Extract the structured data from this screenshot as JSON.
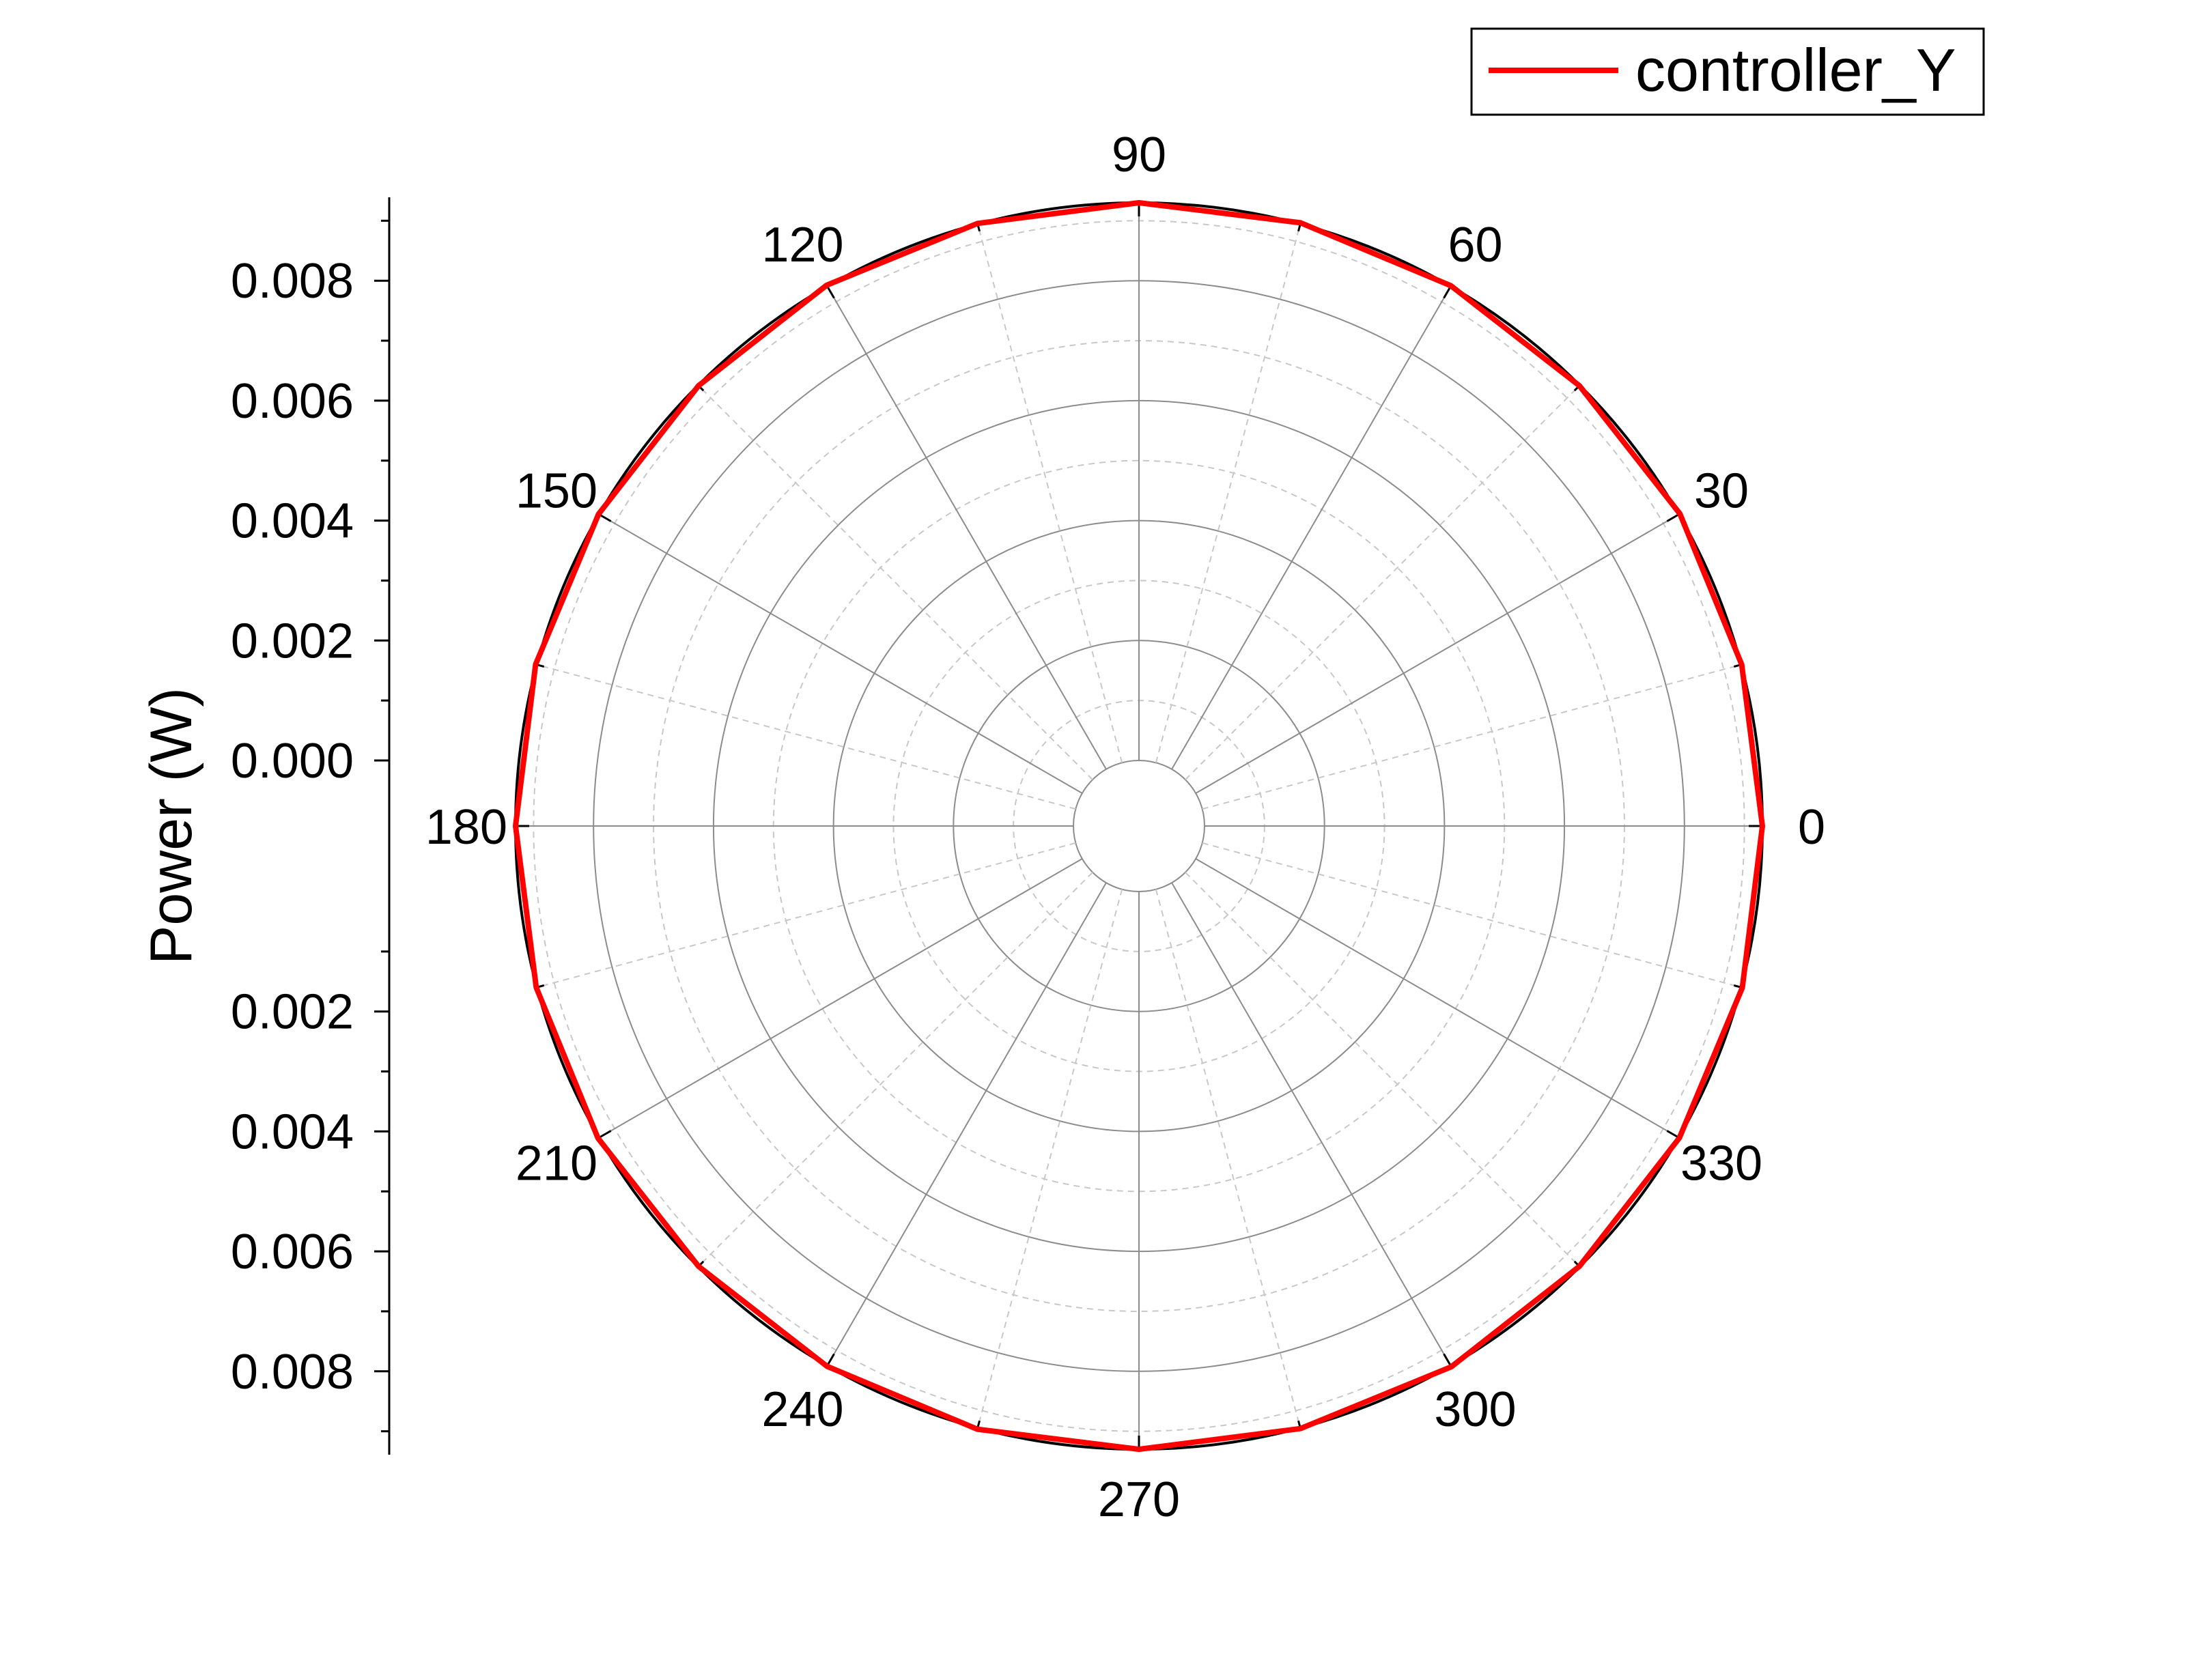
{
  "chart_data": {
    "type": "polar-line",
    "title": "",
    "radial_axis": {
      "label": "Power (W)",
      "range": [
        0,
        0.0093
      ],
      "hole_inner_value": 0.001,
      "tick_values": [
        0.0,
        0.002,
        0.004,
        0.006,
        0.008
      ],
      "tick_labels_upper": [
        "0.008",
        "0.006",
        "0.004",
        "0.002",
        "0.000"
      ],
      "tick_labels_lower": [
        "0.002",
        "0.004",
        "0.006",
        "0.008"
      ],
      "minor_step": 0.001
    },
    "angular_axis": {
      "unit": "degrees",
      "tick_values": [
        0,
        30,
        60,
        90,
        120,
        150,
        180,
        210,
        240,
        270,
        300,
        330
      ],
      "tick_labels": [
        "0",
        "30",
        "60",
        "90",
        "120",
        "150",
        "180",
        "210",
        "240",
        "270",
        "300",
        "330"
      ],
      "minor_step": 15
    },
    "grid": {
      "major": true,
      "minor": true
    },
    "legend": {
      "position": "top-right"
    },
    "series": [
      {
        "name": "controller_Y",
        "color": "#ff0000",
        "theta": [
          0,
          15,
          30,
          45,
          60,
          75,
          90,
          105,
          120,
          135,
          150,
          165,
          180,
          195,
          210,
          225,
          240,
          255,
          270,
          285,
          300,
          315,
          330,
          345,
          360
        ],
        "r": [
          0.0093,
          0.00931,
          0.00932,
          0.00929,
          0.00931,
          0.00932,
          0.0093,
          0.00931,
          0.00932,
          0.00929,
          0.00931,
          0.00932,
          0.0093,
          0.00931,
          0.00932,
          0.00929,
          0.00931,
          0.00932,
          0.0093,
          0.00931,
          0.00932,
          0.00929,
          0.00931,
          0.00932,
          0.0093
        ]
      }
    ]
  }
}
